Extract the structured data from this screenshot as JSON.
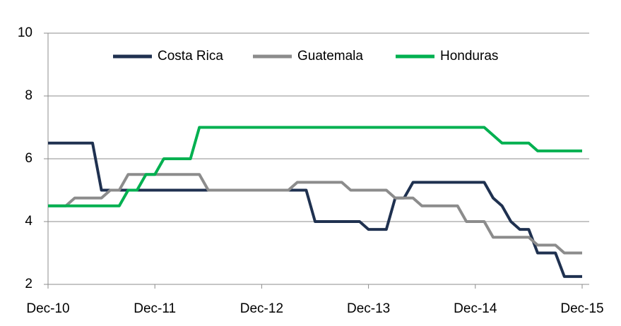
{
  "chart_data": {
    "type": "line",
    "categories": [
      "Dec-10",
      null,
      null,
      null,
      null,
      null,
      null,
      null,
      null,
      null,
      null,
      null,
      "Dec-11",
      null,
      null,
      null,
      null,
      null,
      null,
      null,
      null,
      null,
      null,
      null,
      "Dec-12",
      null,
      null,
      null,
      null,
      null,
      null,
      null,
      null,
      null,
      null,
      null,
      "Dec-13",
      null,
      null,
      null,
      null,
      null,
      null,
      null,
      null,
      null,
      null,
      null,
      "Dec-14",
      null,
      null,
      null,
      null,
      null,
      null,
      null,
      null,
      null,
      null,
      null,
      "Dec-15"
    ],
    "series": [
      {
        "name": "Costa Rica",
        "color": "#1f3150",
        "values": [
          6.5,
          6.5,
          6.5,
          6.5,
          6.5,
          6.5,
          5,
          5,
          5,
          5,
          5,
          5,
          5,
          5,
          5,
          5,
          5,
          5,
          5,
          5,
          5,
          5,
          5,
          5,
          5,
          5,
          5,
          5,
          5,
          5,
          4,
          4,
          4,
          4,
          4,
          4,
          3.75,
          3.75,
          3.75,
          4.75,
          4.75,
          5.25,
          5.25,
          5.25,
          5.25,
          5.25,
          5.25,
          5.25,
          5.25,
          5.25,
          4.75,
          4.5,
          4,
          3.75,
          3.75,
          3,
          3,
          3,
          2.25,
          2.25,
          2.25
        ]
      },
      {
        "name": "Guatemala",
        "color": "#8c8c8c",
        "values": [
          4.5,
          4.5,
          4.5,
          4.75,
          4.75,
          4.75,
          4.75,
          5,
          5,
          5.5,
          5.5,
          5.5,
          5.5,
          5.5,
          5.5,
          5.5,
          5.5,
          5.5,
          5,
          5,
          5,
          5,
          5,
          5,
          5,
          5,
          5,
          5,
          5.25,
          5.25,
          5.25,
          5.25,
          5.25,
          5.25,
          5,
          5,
          5,
          5,
          5,
          4.75,
          4.75,
          4.75,
          4.5,
          4.5,
          4.5,
          4.5,
          4.5,
          4,
          4,
          4,
          3.5,
          3.5,
          3.5,
          3.5,
          3.5,
          3.25,
          3.25,
          3.25,
          3,
          3,
          3
        ]
      },
      {
        "name": "Honduras",
        "color": "#00b050",
        "values": [
          4.5,
          4.5,
          4.5,
          4.5,
          4.5,
          4.5,
          4.5,
          4.5,
          4.5,
          5,
          5,
          5.5,
          5.5,
          6,
          6,
          6,
          6,
          7,
          7,
          7,
          7,
          7,
          7,
          7,
          7,
          7,
          7,
          7,
          7,
          7,
          7,
          7,
          7,
          7,
          7,
          7,
          7,
          7,
          7,
          7,
          7,
          7,
          7,
          7,
          7,
          7,
          7,
          7,
          7,
          7,
          6.75,
          6.5,
          6.5,
          6.5,
          6.5,
          6.25,
          6.25,
          6.25,
          6.25,
          6.25,
          6.25
        ]
      }
    ],
    "ylim": [
      2,
      10
    ],
    "yticks": [
      2,
      4,
      6,
      8,
      10
    ],
    "grid": true,
    "legend": "top"
  }
}
